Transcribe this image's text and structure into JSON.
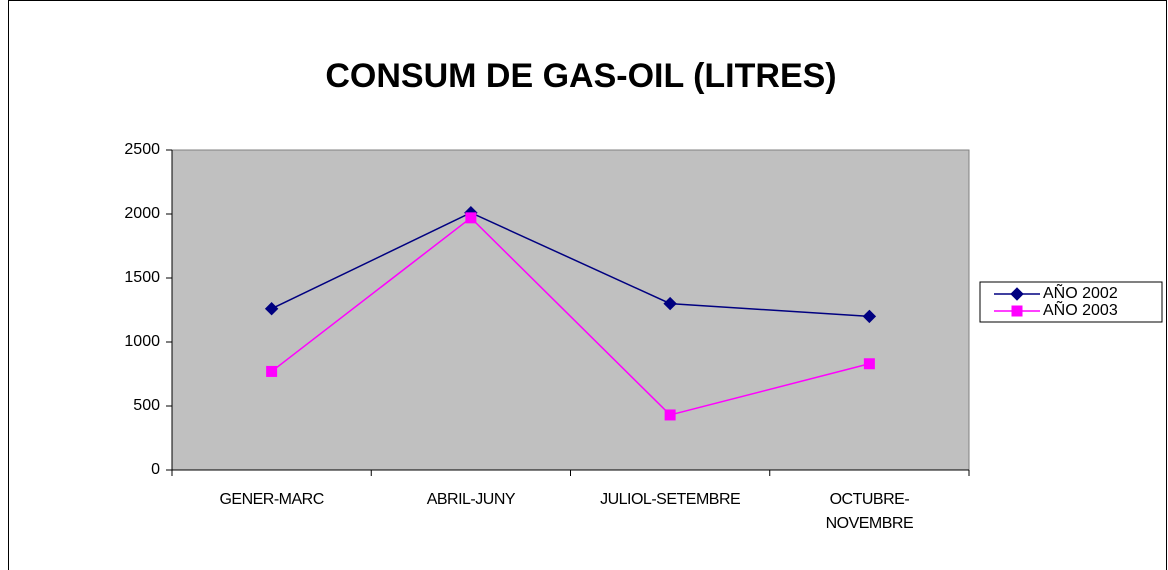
{
  "chart_data": {
    "type": "line",
    "title": "CONSUM DE GAS-OIL (LITRES)",
    "categories": [
      "GENER-MARC",
      "ABRIL-JUNY",
      "JULIOL-SETEMBRE",
      "OCTUBRE-NOVEMBRE"
    ],
    "series": [
      {
        "name": "AÑO 2002",
        "color": "#000080",
        "marker": "diamond",
        "values": [
          1260,
          2010,
          1300,
          1200
        ]
      },
      {
        "name": "AÑO 2003",
        "color": "#ff00ff",
        "marker": "square",
        "values": [
          770,
          1970,
          430,
          830
        ]
      }
    ],
    "ylim": [
      0,
      2500
    ],
    "yticks": [
      0,
      500,
      1000,
      1500,
      2000,
      2500
    ],
    "grid": false,
    "legend": "right"
  }
}
